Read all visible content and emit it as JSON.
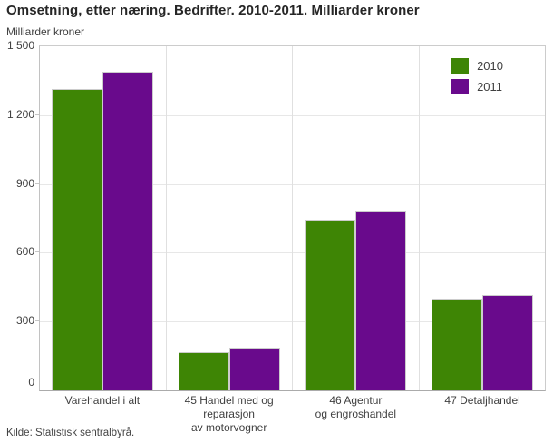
{
  "title": "Omsetning, etter næring. Bedrifter. 2010-2011. Milliarder kroner",
  "y_axis_title": "Milliarder kroner",
  "source": "Kilde: Statistisk sentralbyrå.",
  "colors": {
    "series_2010": "#3e8505",
    "series_2011": "#690a8c",
    "grid": "#e7e7e7",
    "axis": "#ababab",
    "text": "#404040"
  },
  "legend": {
    "position": "top-right",
    "items": [
      {
        "label": "2010",
        "color": "#3e8505"
      },
      {
        "label": "2011",
        "color": "#690a8c"
      }
    ]
  },
  "chart_data": {
    "type": "bar",
    "title": "Omsetning, etter næring. Bedrifter. 2010-2011. Milliarder kroner",
    "xlabel": "",
    "ylabel": "Milliarder kroner",
    "categories": [
      "Varehandel i alt",
      "45 Handel med og\nreparasjon\nav motorvogner",
      "46 Agentur\nog engroshandel",
      "47 Detaljhandel"
    ],
    "series": [
      {
        "name": "2010",
        "color": "#3e8505",
        "values": [
          1315,
          165,
          745,
          400
        ]
      },
      {
        "name": "2011",
        "color": "#690a8c",
        "values": [
          1390,
          185,
          785,
          415
        ]
      }
    ],
    "ylim": [
      0,
      1500
    ],
    "yticks": [
      "0",
      "300",
      "600",
      "900",
      "1 200",
      "1 500"
    ],
    "grid": true,
    "legend_position": "top-right"
  }
}
